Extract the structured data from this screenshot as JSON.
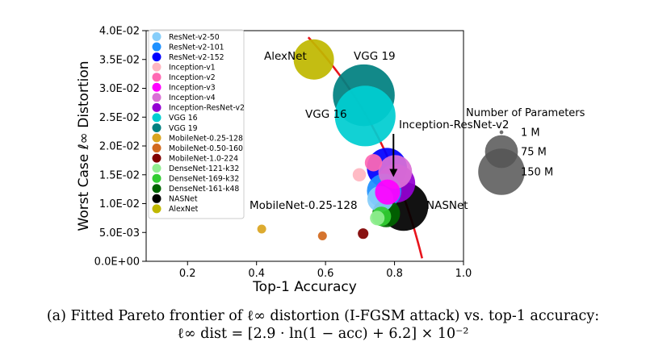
{
  "chart_data": {
    "type": "scatter",
    "title": "",
    "xlabel": "Top-1 Accuracy",
    "ylabel": "Worst Case ℓ∞ Distortion",
    "xlim": [
      0.08,
      1.0
    ],
    "ylim": [
      0.0,
      0.04
    ],
    "x_ticks": [
      {
        "value": 0.2,
        "label": "0.2"
      },
      {
        "value": 0.4,
        "label": "0.4"
      },
      {
        "value": 0.6,
        "label": "0.6"
      },
      {
        "value": 0.8,
        "label": "0.8"
      },
      {
        "value": 1.0,
        "label": "1.0"
      }
    ],
    "y_ticks": [
      {
        "value": 0.0,
        "label": "0.0E+00"
      },
      {
        "value": 0.005,
        "label": "5.0E-03"
      },
      {
        "value": 0.01,
        "label": "1.0E-02"
      },
      {
        "value": 0.015,
        "label": "1.5E-02"
      },
      {
        "value": 0.02,
        "label": "2.0E-02"
      },
      {
        "value": 0.025,
        "label": "2.5E-02"
      },
      {
        "value": 0.03,
        "label": "3.0E-02"
      },
      {
        "value": 0.035,
        "label": "3.5E-02"
      },
      {
        "value": 0.04,
        "label": "4.0E-02"
      }
    ],
    "grid": false,
    "legend_position": "upper-left",
    "series": [
      {
        "name": "ResNet-v2-50",
        "color": "#87cefa",
        "x": 0.759,
        "y": 0.0108,
        "params_m": 25.6
      },
      {
        "name": "ResNet-v2-101",
        "color": "#1e90ff",
        "x": 0.77,
        "y": 0.0122,
        "params_m": 44.5
      },
      {
        "name": "ResNet-v2-152",
        "color": "#0000ff",
        "x": 0.778,
        "y": 0.0162,
        "params_m": 60.2
      },
      {
        "name": "Inception-v1",
        "color": "#ffb6c1",
        "x": 0.698,
        "y": 0.015,
        "params_m": 6.6
      },
      {
        "name": "Inception-v2",
        "color": "#ff69b4",
        "x": 0.739,
        "y": 0.0171,
        "params_m": 11.2
      },
      {
        "name": "Inception-v3",
        "color": "#ff00ff",
        "x": 0.78,
        "y": 0.012,
        "params_m": 23.8
      },
      {
        "name": "Inception-v4",
        "color": "#da70d6",
        "x": 0.802,
        "y": 0.0155,
        "params_m": 42.7
      },
      {
        "name": "Inception-ResNet-v2",
        "color": "#9400d3",
        "x": 0.804,
        "y": 0.0135,
        "params_m": 55.8
      },
      {
        "name": "VGG 16",
        "color": "#00ced1",
        "x": 0.715,
        "y": 0.0252,
        "params_m": 138
      },
      {
        "name": "VGG 19",
        "color": "#008080",
        "x": 0.711,
        "y": 0.0288,
        "params_m": 143
      },
      {
        "name": "MobileNet-0.25-128",
        "color": "#daa520",
        "x": 0.415,
        "y": 0.0056,
        "params_m": 0.47
      },
      {
        "name": "MobileNet-0.50-160",
        "color": "#d2691e",
        "x": 0.591,
        "y": 0.0044,
        "params_m": 1.34
      },
      {
        "name": "MobileNet-1.0-224",
        "color": "#800000",
        "x": 0.709,
        "y": 0.0048,
        "params_m": 4.2
      },
      {
        "name": "DenseNet-121-k32",
        "color": "#90ee90",
        "x": 0.75,
        "y": 0.0075,
        "params_m": 8.0
      },
      {
        "name": "DenseNet-169-k32",
        "color": "#32cd32",
        "x": 0.762,
        "y": 0.0078,
        "params_m": 14.1
      },
      {
        "name": "DenseNet-161-k48",
        "color": "#006400",
        "x": 0.776,
        "y": 0.0083,
        "params_m": 28.7
      },
      {
        "name": "NASNet",
        "color": "#000000",
        "x": 0.827,
        "y": 0.0095,
        "params_m": 88.9
      },
      {
        "name": "AlexNet",
        "color": "#c0b800",
        "x": 0.566,
        "y": 0.035,
        "params_m": 61
      }
    ],
    "fitted_curve": {
      "name": "Pareto frontier",
      "color": "#e8141c",
      "a": 2.9,
      "b": 6.2,
      "scale": 0.01
    },
    "annotations": [
      {
        "text": "AlexNet",
        "target": "AlexNet"
      },
      {
        "text": "VGG 19",
        "target": "VGG 19"
      },
      {
        "text": "VGG 16",
        "target": "VGG 16"
      },
      {
        "text": "Inception-ResNet-v2",
        "target": "Inception-ResNet-v2"
      },
      {
        "text": "MobileNet-0.25-128",
        "target": "MobileNet-0.25-128"
      },
      {
        "text": "NASNet",
        "target": "NASNet"
      }
    ],
    "size_legend": {
      "title": "Number of Parameters",
      "entries": [
        {
          "label": "1 M",
          "params_m": 1
        },
        {
          "label": "75 M",
          "params_m": 75
        },
        {
          "label": "150 M",
          "params_m": 150
        }
      ]
    }
  },
  "caption": {
    "line1": "(a) Fitted Pareto frontier of ℓ∞ distortion (I-FGSM attack) vs. top-1 accuracy:",
    "line2": "ℓ∞ dist = [2.9 · ln(1 − acc) + 6.2] × 10⁻²"
  }
}
